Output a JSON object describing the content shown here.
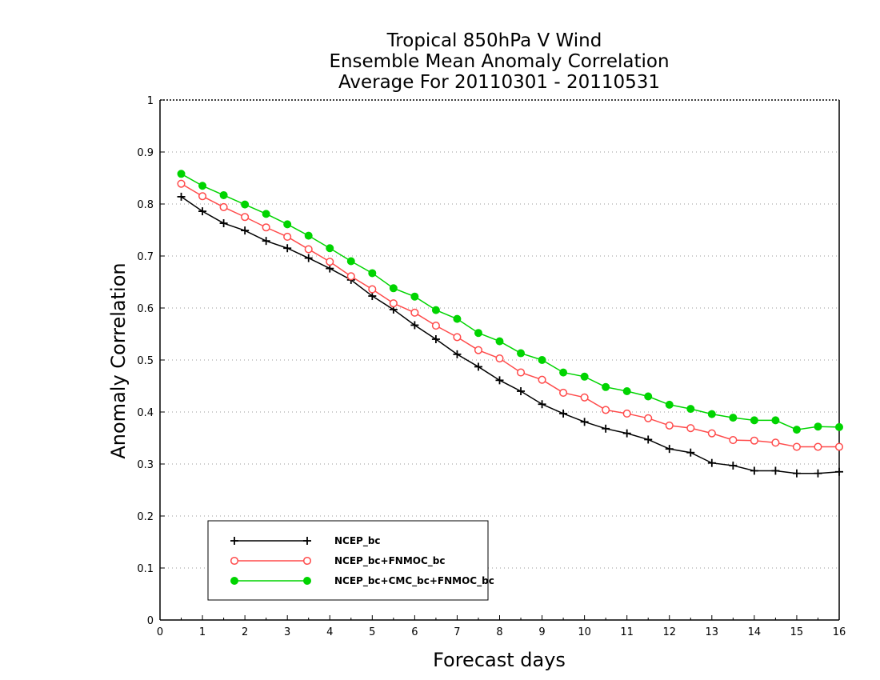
{
  "chart_data": {
    "type": "line",
    "title": [
      "Tropical 850hPa V Wind",
      "Ensemble Mean Anomaly Correlation",
      "Average For 20110301 - 20110531"
    ],
    "xlabel": "Forecast days",
    "ylabel": "Anomaly Correlation",
    "xlim": [
      0,
      16
    ],
    "ylim": [
      0,
      1
    ],
    "xticks": [
      "0",
      "1",
      "2",
      "3",
      "4",
      "5",
      "6",
      "7",
      "8",
      "9",
      "10",
      "11",
      "12",
      "13",
      "14",
      "15",
      "16"
    ],
    "yticks": [
      "0",
      "0.1",
      "0.2",
      "0.3",
      "0.4",
      "0.5",
      "0.6",
      "0.7",
      "0.8",
      "0.9",
      "1"
    ],
    "grid": "dotted horizontal",
    "legend_position": "bottom-left",
    "x": [
      0.5,
      1,
      1.5,
      2,
      2.5,
      3,
      3.5,
      4,
      4.5,
      5,
      5.5,
      6,
      6.5,
      7,
      7.5,
      8,
      8.5,
      9,
      9.5,
      10,
      10.5,
      11,
      11.5,
      12,
      12.5,
      13,
      13.5,
      14,
      14.5,
      15,
      15.5,
      16
    ],
    "series": [
      {
        "name": "NCEP_bc",
        "color": "#000000",
        "marker": "plus",
        "values": [
          0.814,
          0.786,
          0.763,
          0.749,
          0.729,
          0.715,
          0.696,
          0.676,
          0.654,
          0.623,
          0.597,
          0.567,
          0.54,
          0.511,
          0.487,
          0.461,
          0.44,
          0.415,
          0.397,
          0.381,
          0.368,
          0.359,
          0.347,
          0.329,
          0.322,
          0.302,
          0.297,
          0.287,
          0.287,
          0.282,
          0.282,
          0.285
        ]
      },
      {
        "name": "NCEP_bc+FNMOC_bc",
        "color": "#ff4b4b",
        "marker": "open-circle",
        "values": [
          0.839,
          0.815,
          0.794,
          0.775,
          0.755,
          0.737,
          0.713,
          0.689,
          0.661,
          0.636,
          0.609,
          0.591,
          0.566,
          0.544,
          0.519,
          0.503,
          0.476,
          0.462,
          0.437,
          0.428,
          0.404,
          0.397,
          0.388,
          0.374,
          0.369,
          0.359,
          0.346,
          0.345,
          0.341,
          0.333,
          0.333,
          0.333
        ]
      },
      {
        "name": "NCEP_bc+CMC_bc+FNMOC_bc",
        "color": "#00d400",
        "marker": "filled-circle",
        "values": [
          0.858,
          0.835,
          0.817,
          0.799,
          0.781,
          0.761,
          0.739,
          0.715,
          0.69,
          0.667,
          0.638,
          0.622,
          0.596,
          0.579,
          0.552,
          0.536,
          0.513,
          0.5,
          0.476,
          0.468,
          0.448,
          0.44,
          0.43,
          0.414,
          0.406,
          0.396,
          0.389,
          0.384,
          0.384,
          0.366,
          0.372,
          0.371
        ]
      }
    ]
  }
}
